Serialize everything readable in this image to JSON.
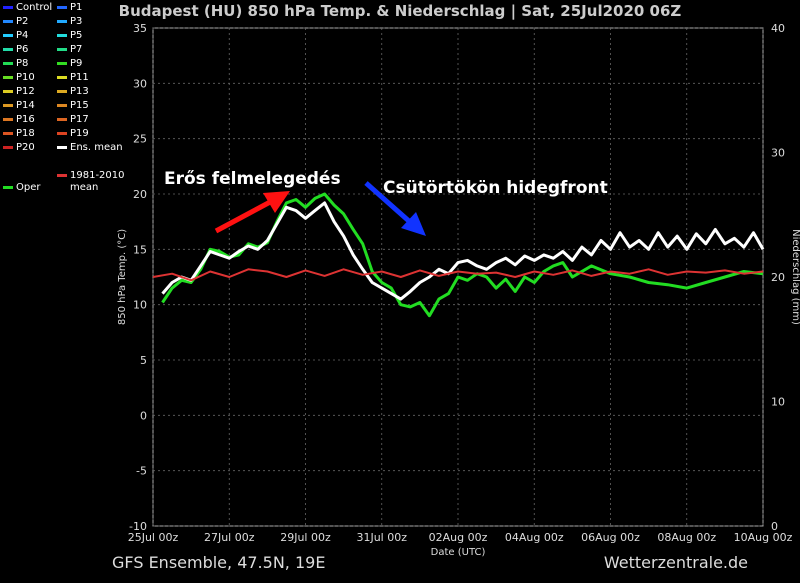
{
  "title": "Budapest  (HU)  850 hPa Temp. & Niederschlag | Sat, 25Jul2020 06Z",
  "footer": {
    "left": "GFS Ensemble, 47.5N, 19E",
    "right": "Wetterzentrale.de"
  },
  "annotations": {
    "warming": "Erős felmelegedés",
    "front": "Csütörtökön hidegfront"
  },
  "colors": {
    "background": "#000000",
    "grid": "#666666",
    "ens_mean": "#ffffff",
    "oper": "#22dd22",
    "climate": "#dd3333",
    "arrow_warm": "#ff1111",
    "arrow_cold": "#1133ff"
  },
  "legend": [
    {
      "label": "Control",
      "color": "#2222ff"
    },
    {
      "label": "P1",
      "color": "#2266ff"
    },
    {
      "label": "P2",
      "color": "#2288ff"
    },
    {
      "label": "P3",
      "color": "#22aaff"
    },
    {
      "label": "P4",
      "color": "#22ccff"
    },
    {
      "label": "P5",
      "color": "#22dddd"
    },
    {
      "label": "P6",
      "color": "#22ddaa"
    },
    {
      "label": "P7",
      "color": "#22dd88"
    },
    {
      "label": "P8",
      "color": "#22dd55"
    },
    {
      "label": "P9",
      "color": "#33dd22"
    },
    {
      "label": "P10",
      "color": "#66dd22"
    },
    {
      "label": "P11",
      "color": "#dddd22"
    },
    {
      "label": "P12",
      "color": "#ddcc22"
    },
    {
      "label": "P13",
      "color": "#ddaa22"
    },
    {
      "label": "P14",
      "color": "#dd9922"
    },
    {
      "label": "P15",
      "color": "#dd8822"
    },
    {
      "label": "P16",
      "color": "#dd7722"
    },
    {
      "label": "P17",
      "color": "#dd6622"
    },
    {
      "label": "P18",
      "color": "#dd5522"
    },
    {
      "label": "P19",
      "color": "#dd4422"
    },
    {
      "label": "P20",
      "color": "#cc2222"
    },
    {
      "label": "Ens. mean",
      "color": "#ffffff"
    },
    {
      "label": "Oper",
      "color": "#22dd22"
    },
    {
      "label": "1981-2010 mean",
      "color": "#dd3333"
    }
  ],
  "chart_data": {
    "type": "line",
    "xlabel": "Date (UTC)",
    "ylabel": "850 hPa Temp. (°C)",
    "y2label": "Niederschlag (mm)",
    "x_ticks": [
      "25Jul 00z",
      "27Jul 00z",
      "29Jul 00z",
      "31Jul 00z",
      "02Aug 00z",
      "04Aug 00z",
      "06Aug 00z",
      "08Aug 00z",
      "10Aug 00z"
    ],
    "xlim_days": [
      0,
      16
    ],
    "ylim": [
      -10,
      35
    ],
    "y_ticks": [
      -10,
      -5,
      0,
      5,
      10,
      15,
      20,
      25,
      30,
      35
    ],
    "y2lim": [
      0,
      40
    ],
    "y2_ticks": [
      0,
      10,
      20,
      30,
      40
    ],
    "grid": true,
    "series": [
      {
        "name": "Oper",
        "x": [
          0.25,
          0.5,
          0.75,
          1,
          1.25,
          1.5,
          1.75,
          2,
          2.25,
          2.5,
          2.75,
          3,
          3.25,
          3.5,
          3.75,
          4,
          4.25,
          4.5,
          4.75,
          5,
          5.25,
          5.5,
          5.75,
          6,
          6.25,
          6.5,
          6.75,
          7,
          7.25,
          7.5,
          7.75,
          8,
          8.25,
          8.5,
          8.75,
          9,
          9.25,
          9.5,
          9.75,
          10,
          10.25,
          10.5,
          10.75,
          11,
          11.5,
          12,
          12.5,
          13,
          13.5,
          14,
          14.5,
          15,
          15.5,
          16
        ],
        "values": [
          10.2,
          11.5,
          12.2,
          12.0,
          13.2,
          15.0,
          14.8,
          14.3,
          14.5,
          15.5,
          15.2,
          15.6,
          17.5,
          19.2,
          19.5,
          18.8,
          19.6,
          20.0,
          19.0,
          18.2,
          16.8,
          15.5,
          13.0,
          12.0,
          11.5,
          10.0,
          9.8,
          10.2,
          9.0,
          10.5,
          11.0,
          12.5,
          12.2,
          12.8,
          12.5,
          11.5,
          12.3,
          11.2,
          12.5,
          12.0,
          13.0,
          13.5,
          13.8,
          12.5,
          13.5,
          12.8,
          12.5,
          12.0,
          11.8,
          11.5,
          12.0,
          12.5,
          13.0,
          12.8
        ]
      },
      {
        "name": "Ens. mean",
        "x": [
          0.25,
          0.5,
          0.75,
          1,
          1.25,
          1.5,
          1.75,
          2,
          2.25,
          2.5,
          2.75,
          3,
          3.25,
          3.5,
          3.75,
          4,
          4.25,
          4.5,
          4.75,
          5,
          5.25,
          5.5,
          5.75,
          6,
          6.25,
          6.5,
          6.75,
          7,
          7.25,
          7.5,
          7.75,
          8,
          8.25,
          8.5,
          8.75,
          9,
          9.25,
          9.5,
          9.75,
          10,
          10.25,
          10.5,
          10.75,
          11,
          11.25,
          11.5,
          11.75,
          12,
          12.25,
          12.5,
          12.75,
          13,
          13.25,
          13.5,
          13.75,
          14,
          14.25,
          14.5,
          14.75,
          15,
          15.25,
          15.5,
          15.75,
          16
        ],
        "values": [
          11.0,
          12.0,
          12.5,
          12.2,
          13.5,
          14.8,
          14.5,
          14.2,
          14.8,
          15.3,
          15.0,
          15.8,
          17.3,
          18.8,
          18.5,
          17.8,
          18.5,
          19.2,
          17.5,
          16.2,
          14.5,
          13.2,
          12.0,
          11.5,
          11.0,
          10.5,
          11.2,
          12.0,
          12.5,
          13.2,
          12.8,
          13.8,
          14.0,
          13.5,
          13.2,
          13.8,
          14.2,
          13.6,
          14.4,
          14.0,
          14.5,
          14.2,
          14.8,
          14.0,
          15.2,
          14.5,
          15.8,
          15.0,
          16.5,
          15.2,
          15.8,
          15.0,
          16.5,
          15.2,
          16.2,
          15.0,
          16.4,
          15.5,
          16.8,
          15.5,
          16.0,
          15.2,
          16.5,
          15.0
        ]
      },
      {
        "name": "1981-2010 mean",
        "x": [
          0,
          0.5,
          1,
          1.5,
          2,
          2.5,
          3,
          3.5,
          4,
          4.5,
          5,
          5.5,
          6,
          6.5,
          7,
          7.5,
          8,
          8.5,
          9,
          9.5,
          10,
          10.5,
          11,
          11.5,
          12,
          12.5,
          13,
          13.5,
          14,
          14.5,
          15,
          15.5,
          16
        ],
        "values": [
          12.5,
          12.8,
          12.2,
          13.0,
          12.5,
          13.2,
          13.0,
          12.5,
          13.1,
          12.6,
          13.2,
          12.7,
          13.0,
          12.5,
          13.1,
          12.6,
          13.0,
          12.8,
          12.9,
          12.5,
          13.0,
          12.7,
          13.1,
          12.6,
          13.0,
          12.8,
          13.2,
          12.7,
          13.0,
          12.9,
          13.1,
          12.8,
          13.0
        ]
      }
    ]
  }
}
